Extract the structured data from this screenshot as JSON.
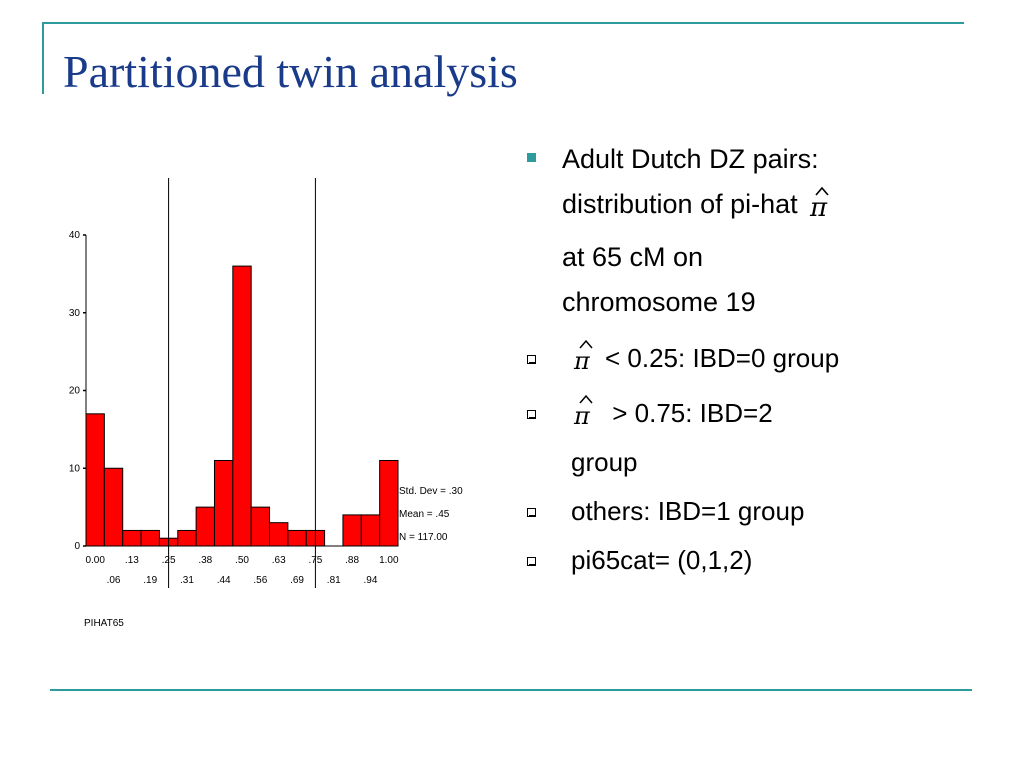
{
  "title": "Partitioned twin analysis",
  "main_bullet": {
    "lines": [
      "Adult Dutch DZ pairs:",
      "distribution of pi-hat",
      "at 65 cM on",
      "chromosome 19"
    ]
  },
  "sub_bullets": [
    {
      "symbol": "π̂",
      "text": "< 0.25: IBD=0 group"
    },
    {
      "symbol": "π̂",
      "text": " > 0.75: IBD=2",
      "text2": "group"
    },
    {
      "text": "others: IBD=1 group"
    },
    {
      "text": "pi65cat= (0,1,2)"
    }
  ],
  "colors": {
    "title": "#1a3a8a",
    "accent": "#2e9c9c",
    "bar_fill": "#ff0000"
  },
  "icons": {
    "bullet_main": "square-bullet-icon",
    "bullet_sub": "hollow-square-bullet-icon"
  },
  "chart_data": {
    "type": "bar",
    "xlabel": "PIHAT65",
    "ylim": [
      0,
      40
    ],
    "yticks": [
      "0",
      "10",
      "20",
      "30",
      "40"
    ],
    "values": [
      17,
      10,
      2,
      2,
      1,
      2,
      5,
      11,
      36,
      5,
      3,
      2,
      2,
      0,
      4,
      4,
      11
    ],
    "xtick_labels_top": [
      ".00",
      ".13",
      ".25",
      ".38",
      ".50",
      ".63",
      ".75",
      ".88",
      "1.00"
    ],
    "xtick_labels_top_display": [
      "0.00",
      ".13",
      ".25",
      ".38",
      ".50",
      ".63",
      ".75",
      ".88",
      "1.00"
    ],
    "xtick_labels_bottom": [
      ".06",
      ".19",
      ".31",
      ".44",
      ".56",
      ".69",
      ".81",
      ".94"
    ],
    "cutoff_lines": [
      0.25,
      0.75
    ],
    "stats": [
      "Std. Dev = .30",
      "Mean = .45",
      "N = 117.00"
    ],
    "grid": false
  }
}
